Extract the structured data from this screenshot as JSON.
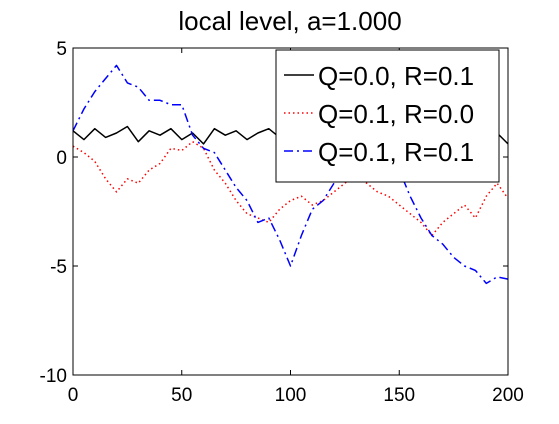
{
  "chart_data": {
    "type": "line",
    "title": "local level, a=1.000",
    "xlabel": "",
    "ylabel": "",
    "xlim": [
      0,
      200
    ],
    "ylim": [
      -10,
      5
    ],
    "xticks": [
      0,
      50,
      100,
      150,
      200
    ],
    "yticks": [
      -10,
      -5,
      0,
      5
    ],
    "xtick_labels": [
      "0",
      "50",
      "100",
      "150",
      "200"
    ],
    "ytick_labels": [
      "-10",
      "-5",
      "0",
      "5"
    ],
    "grid": false,
    "legend_position": "top-right",
    "series": [
      {
        "name": "Q=0.0, R=0.1",
        "color": "#000000",
        "line_style": "solid",
        "x": [
          0,
          5,
          10,
          15,
          20,
          25,
          30,
          35,
          40,
          45,
          50,
          55,
          60,
          65,
          70,
          75,
          80,
          85,
          90,
          95,
          100,
          105,
          110,
          115,
          120,
          125,
          130,
          135,
          140,
          145,
          150,
          155,
          160,
          165,
          170,
          175,
          180,
          185,
          190,
          195,
          200
        ],
        "y": [
          1.2,
          0.8,
          1.3,
          0.9,
          1.1,
          1.4,
          0.7,
          1.2,
          1.0,
          1.3,
          0.8,
          1.1,
          0.6,
          1.3,
          1.0,
          1.2,
          0.8,
          1.1,
          1.3,
          0.9,
          1.0,
          1.2,
          0.8,
          1.1,
          1.3,
          0.9,
          1.1,
          1.2,
          0.8,
          1.0,
          1.2,
          1.1,
          0.9,
          1.2,
          1.0,
          1.1,
          0.9,
          1.2,
          1.0,
          1.1,
          0.6
        ]
      },
      {
        "name": "Q=0.1, R=0.0",
        "color": "#ff0000",
        "line_style": "dotted",
        "x": [
          0,
          5,
          10,
          15,
          20,
          25,
          30,
          35,
          40,
          45,
          50,
          55,
          60,
          65,
          70,
          75,
          80,
          85,
          90,
          95,
          100,
          105,
          110,
          115,
          120,
          125,
          130,
          135,
          140,
          145,
          150,
          155,
          160,
          165,
          170,
          175,
          180,
          185,
          190,
          195,
          200
        ],
        "y": [
          0.5,
          0.2,
          -0.2,
          -1.0,
          -1.6,
          -1.0,
          -1.2,
          -0.6,
          -0.3,
          0.4,
          0.3,
          0.7,
          0.4,
          -0.6,
          -1.2,
          -2.0,
          -2.6,
          -2.8,
          -3.0,
          -2.4,
          -2.0,
          -1.8,
          -2.2,
          -2.0,
          -1.6,
          -1.2,
          -0.8,
          -1.2,
          -1.6,
          -1.8,
          -2.2,
          -2.6,
          -3.0,
          -3.6,
          -3.0,
          -2.6,
          -2.2,
          -2.8,
          -1.8,
          -1.2,
          -1.9
        ]
      },
      {
        "name": "Q=0.1, R=0.1",
        "color": "#0000ff",
        "line_style": "dashdot",
        "x": [
          0,
          5,
          10,
          15,
          20,
          25,
          30,
          35,
          40,
          45,
          50,
          55,
          60,
          65,
          70,
          75,
          80,
          85,
          90,
          95,
          100,
          105,
          110,
          115,
          120,
          125,
          130,
          135,
          140,
          145,
          150,
          155,
          160,
          165,
          170,
          175,
          180,
          185,
          190,
          195,
          200
        ],
        "y": [
          1.2,
          2.2,
          3.0,
          3.6,
          4.2,
          3.4,
          3.2,
          2.6,
          2.6,
          2.4,
          2.4,
          1.0,
          0.4,
          0.2,
          -0.6,
          -1.4,
          -2.0,
          -3.0,
          -2.8,
          -3.8,
          -5.0,
          -3.6,
          -2.4,
          -2.0,
          -1.2,
          -0.6,
          -0.2,
          0.8,
          0.0,
          0.4,
          -0.6,
          -1.8,
          -2.8,
          -3.6,
          -4.0,
          -4.6,
          -5.0,
          -5.2,
          -5.8,
          -5.5,
          -5.6
        ]
      }
    ]
  }
}
